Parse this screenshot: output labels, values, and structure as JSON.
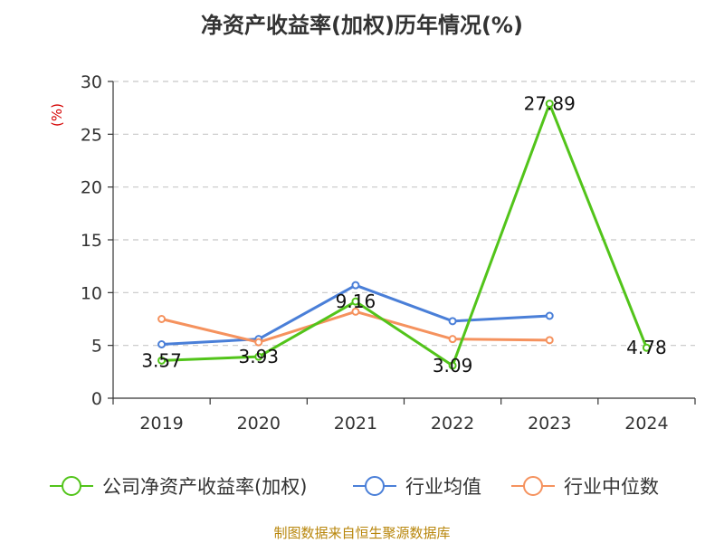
{
  "chart_data": {
    "type": "line",
    "title": "净资产收益率(加权)历年情况(%)",
    "ylabel": "(%)",
    "categories": [
      "2019",
      "2020",
      "2021",
      "2022",
      "2023",
      "2024"
    ],
    "ylim": [
      0,
      30
    ],
    "yticks": [
      "0",
      "5",
      "10",
      "15",
      "20",
      "25",
      "30"
    ],
    "grid": true,
    "legend_position": "bottom",
    "series": [
      {
        "name": "公司净资产收益率(加权)",
        "color": "#52c41a",
        "values": [
          3.57,
          3.93,
          9.16,
          3.09,
          27.89,
          4.78
        ],
        "labels": [
          "3.57",
          "3.93",
          "9.16",
          "3.09",
          "27.89",
          "4.78"
        ]
      },
      {
        "name": "行业均值",
        "color": "#4a7fd8",
        "values": [
          5.1,
          5.6,
          10.7,
          7.3,
          7.8,
          null
        ]
      },
      {
        "name": "行业中位数",
        "color": "#f5925e",
        "values": [
          7.5,
          5.3,
          8.2,
          5.6,
          5.5,
          null
        ]
      }
    ],
    "source": "制图数据来自恒生聚源数据库"
  }
}
